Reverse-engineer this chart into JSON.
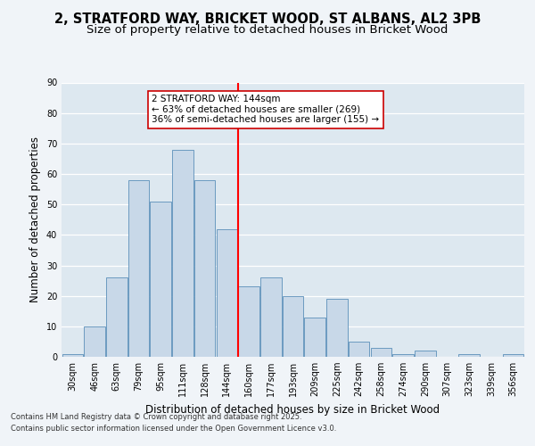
{
  "title_line1": "2, STRATFORD WAY, BRICKET WOOD, ST ALBANS, AL2 3PB",
  "title_line2": "Size of property relative to detached houses in Bricket Wood",
  "xlabel": "Distribution of detached houses by size in Bricket Wood",
  "ylabel": "Number of detached properties",
  "categories": [
    "30sqm",
    "46sqm",
    "63sqm",
    "79sqm",
    "95sqm",
    "111sqm",
    "128sqm",
    "144sqm",
    "160sqm",
    "177sqm",
    "193sqm",
    "209sqm",
    "225sqm",
    "242sqm",
    "258sqm",
    "274sqm",
    "290sqm",
    "307sqm",
    "323sqm",
    "339sqm",
    "356sqm"
  ],
  "values": [
    1,
    10,
    26,
    58,
    51,
    68,
    58,
    42,
    23,
    26,
    20,
    13,
    19,
    5,
    3,
    1,
    2,
    0,
    1,
    0,
    1
  ],
  "bar_color": "#c8d8e8",
  "bar_edge_color": "#5b8fb9",
  "red_line_index": 7,
  "annotation_title": "2 STRATFORD WAY: 144sqm",
  "annotation_line1": "← 63% of detached houses are smaller (269)",
  "annotation_line2": "36% of semi-detached houses are larger (155) →",
  "ylim_max": 90,
  "yticks": [
    0,
    10,
    20,
    30,
    40,
    50,
    60,
    70,
    80,
    90
  ],
  "footnote_line1": "Contains HM Land Registry data © Crown copyright and database right 2025.",
  "footnote_line2": "Contains public sector information licensed under the Open Government Licence v3.0.",
  "bg_color": "#dde8f0",
  "grid_color": "#ffffff",
  "fig_bg_color": "#f0f4f8",
  "title_fontsize": 10.5,
  "subtitle_fontsize": 9.5,
  "tick_fontsize": 7.0,
  "ylabel_fontsize": 8.5,
  "xlabel_fontsize": 8.5,
  "annot_fontsize": 7.5,
  "footnote_fontsize": 6.0
}
